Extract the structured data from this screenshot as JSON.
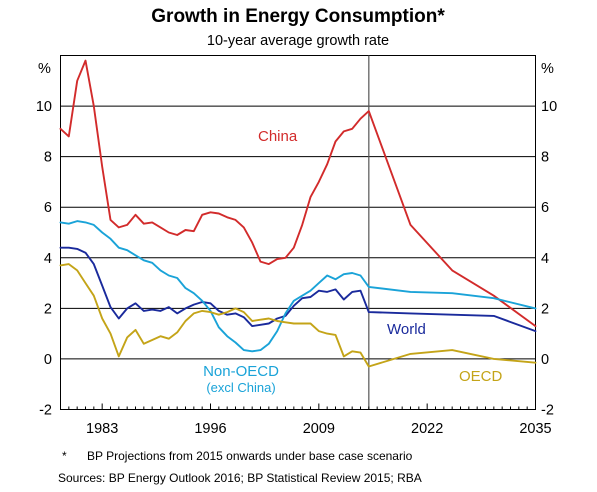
{
  "chart_data": {
    "type": "line",
    "title": "Growth in Energy Consumption*",
    "subtitle": "10-year average growth rate",
    "ylabel_left": "%",
    "ylabel_right": "%",
    "ylim": [
      -2,
      12
    ],
    "yticks": [
      "-2",
      "0",
      "2",
      "4",
      "6",
      "8",
      "10"
    ],
    "xlim": [
      1978,
      2035
    ],
    "xticks": [
      "1983",
      "1996",
      "2009",
      "2022",
      "2035"
    ],
    "xtick_values": [
      1983,
      1996,
      2009,
      2022,
      2035
    ],
    "vline_year": 2015,
    "series": [
      {
        "name": "China",
        "color": "#d22b2b",
        "x": [
          1978,
          1979,
          1980,
          1981,
          1982,
          1983,
          1984,
          1985,
          1986,
          1987,
          1988,
          1989,
          1990,
          1991,
          1992,
          1993,
          1994,
          1995,
          1996,
          1997,
          1998,
          1999,
          2000,
          2001,
          2002,
          2003,
          2004,
          2005,
          2006,
          2007,
          2008,
          2009,
          2010,
          2011,
          2012,
          2013,
          2014,
          2015,
          2020,
          2025,
          2030,
          2035
        ],
        "values": [
          9.1,
          8.8,
          11.0,
          11.8,
          10.0,
          7.6,
          5.5,
          5.2,
          5.3,
          5.7,
          5.35,
          5.4,
          5.2,
          5.0,
          4.9,
          5.1,
          5.05,
          5.7,
          5.8,
          5.75,
          5.6,
          5.5,
          5.2,
          4.6,
          3.85,
          3.75,
          3.95,
          4.0,
          4.4,
          5.3,
          6.4,
          7.0,
          7.7,
          8.6,
          9.0,
          9.1,
          9.5,
          9.8,
          5.3,
          3.5,
          2.5,
          1.3
        ]
      },
      {
        "name": "World",
        "color": "#1a2a9c",
        "x": [
          1978,
          1979,
          1980,
          1981,
          1982,
          1983,
          1984,
          1985,
          1986,
          1987,
          1988,
          1989,
          1990,
          1991,
          1992,
          1993,
          1994,
          1995,
          1996,
          1997,
          1998,
          1999,
          2000,
          2001,
          2002,
          2003,
          2004,
          2005,
          2006,
          2007,
          2008,
          2009,
          2010,
          2011,
          2012,
          2013,
          2014,
          2015,
          2020,
          2025,
          2030,
          2035
        ],
        "values": [
          4.4,
          4.4,
          4.35,
          4.2,
          3.75,
          2.9,
          2.05,
          1.6,
          2.0,
          2.2,
          1.9,
          1.95,
          1.9,
          2.05,
          1.8,
          2.0,
          2.15,
          2.25,
          2.2,
          1.9,
          1.75,
          1.8,
          1.65,
          1.3,
          1.35,
          1.4,
          1.6,
          1.7,
          2.1,
          2.4,
          2.45,
          2.7,
          2.65,
          2.75,
          2.35,
          2.65,
          2.7,
          1.85,
          1.8,
          1.75,
          1.7,
          1.1
        ]
      },
      {
        "name": "Non-OECD",
        "sublabel": "(excl China)",
        "color": "#1aa3d8",
        "x": [
          1978,
          1979,
          1980,
          1981,
          1982,
          1983,
          1984,
          1985,
          1986,
          1987,
          1988,
          1989,
          1990,
          1991,
          1992,
          1993,
          1994,
          1995,
          1996,
          1997,
          1998,
          1999,
          2000,
          2001,
          2002,
          2003,
          2004,
          2005,
          2006,
          2007,
          2008,
          2009,
          2010,
          2011,
          2012,
          2013,
          2014,
          2015,
          2020,
          2025,
          2030,
          2035
        ],
        "values": [
          5.4,
          5.35,
          5.45,
          5.4,
          5.3,
          5.0,
          4.75,
          4.4,
          4.3,
          4.1,
          3.9,
          3.8,
          3.5,
          3.3,
          3.2,
          2.8,
          2.6,
          2.3,
          1.9,
          1.25,
          0.9,
          0.65,
          0.35,
          0.3,
          0.35,
          0.6,
          1.1,
          1.8,
          2.3,
          2.5,
          2.7,
          3.0,
          3.3,
          3.15,
          3.35,
          3.4,
          3.3,
          2.85,
          2.65,
          2.6,
          2.4,
          2.0
        ]
      },
      {
        "name": "OECD",
        "color": "#c4a418",
        "x": [
          1978,
          1979,
          1980,
          1981,
          1982,
          1983,
          1984,
          1985,
          1986,
          1987,
          1988,
          1989,
          1990,
          1991,
          1992,
          1993,
          1994,
          1995,
          1996,
          1997,
          1998,
          1999,
          2000,
          2001,
          2002,
          2003,
          2004,
          2005,
          2006,
          2007,
          2008,
          2009,
          2010,
          2011,
          2012,
          2013,
          2014,
          2015,
          2020,
          2025,
          2030,
          2035
        ],
        "values": [
          3.7,
          3.75,
          3.5,
          3.0,
          2.5,
          1.6,
          1.0,
          0.1,
          0.85,
          1.15,
          0.6,
          0.75,
          0.9,
          0.8,
          1.05,
          1.5,
          1.8,
          1.9,
          1.85,
          1.75,
          1.85,
          2.0,
          1.85,
          1.5,
          1.55,
          1.6,
          1.5,
          1.45,
          1.4,
          1.4,
          1.4,
          1.1,
          1.0,
          0.95,
          0.1,
          0.3,
          0.25,
          -0.3,
          0.2,
          0.35,
          0.0,
          -0.15
        ]
      }
    ]
  },
  "footnotes": {
    "marker": "*",
    "note": "BP Projections from 2015 onwards under base case scenario",
    "sources": "Sources:  BP Energy Outlook 2016; BP Statistical Review 2015; RBA"
  }
}
